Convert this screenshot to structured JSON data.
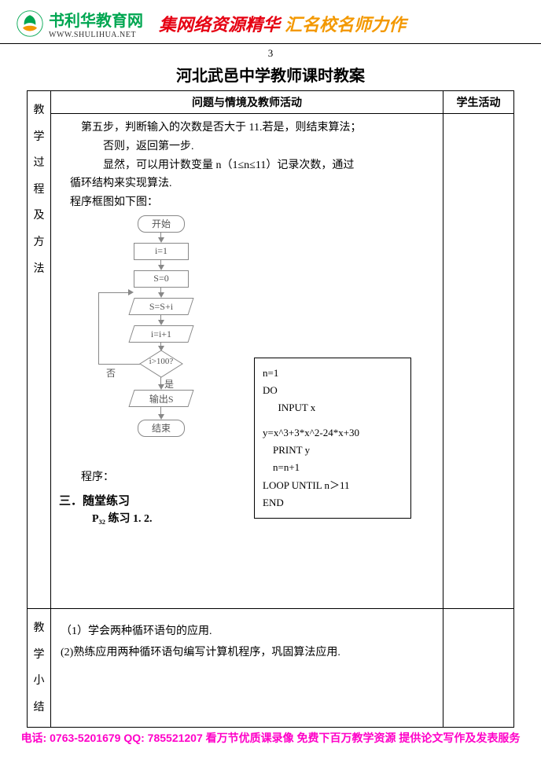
{
  "header": {
    "logo_title": "书利华教育网",
    "logo_url": "WWW.SHULIHUA.NET",
    "slogan_part1": "集网络资源精华 ",
    "slogan_part2": "汇名校名师力作",
    "logo_colors": {
      "green": "#00a651",
      "red": "#e60012",
      "orange": "#f39800"
    }
  },
  "page_number": "3",
  "doc_title": "河北武邑中学教师课时教案",
  "table": {
    "col1_header": "问题与情境及教师活动",
    "col2_header": "学生活动",
    "side_label_1": "教学过程及方法",
    "side_label_2": "教学小结"
  },
  "body": {
    "line1": "第五步，判断输入的次数是否大于 11.若是，则结束算法；",
    "line2": "否则，返回第一步.",
    "line3": "显然，可以用计数变量 n（1≤n≤11）记录次数，通过",
    "line4": "循环结构来实现算法.",
    "line5": "程序框图如下图："
  },
  "flowchart": {
    "nodes": {
      "start": "开始",
      "i_init": "i=1",
      "s_init": "S=0",
      "s_add": "S=S+i",
      "i_inc": "i=i+1",
      "cond": "i>100?",
      "output": "输出S",
      "end": "结束"
    },
    "labels": {
      "yes": "是",
      "no": "否"
    },
    "line_color": "#888888"
  },
  "code": {
    "l1": "n=1",
    "l2": "DO",
    "l3": "INPUT x",
    "l4": "y=x^3+3*x^2-24*x+30",
    "l5": "PRINT y",
    "l6": "n=n+1",
    "l7": "LOOP UNTIL   n＞11",
    "l8": "END"
  },
  "prog_label": "程序：",
  "exercise": {
    "title": "三．随堂练习",
    "line": "P₃₂  练习  1.   2."
  },
  "summary": {
    "l1": "（1）学会两种循环语句的应用.",
    "l2": "(2)熟练应用两种循环语句编写计算机程序，巩固算法应用."
  },
  "footer": {
    "tel_label": "电话:",
    "tel": " 0763-5201679 ",
    "qq_label": "QQ:",
    "qq": " 785521207 ",
    "rest": "看万节优质课录像 免费下百万教学资源 提供论文写作及发表服务"
  }
}
